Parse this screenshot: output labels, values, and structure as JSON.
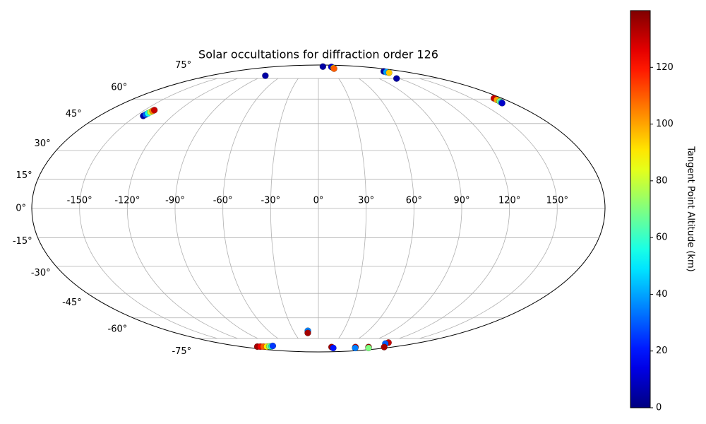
{
  "chart_data": {
    "type": "scatter",
    "projection": "mollweide",
    "colormap": "jet",
    "title": "Solar occultations for diffraction order 126",
    "colorbar_label": "Tangent Point Altitude (km)",
    "xlim": [
      -180,
      180
    ],
    "ylim": [
      -90,
      90
    ],
    "clim": [
      0,
      140
    ],
    "grid": true,
    "xticks": [
      {
        "value": -150,
        "label": "-150°"
      },
      {
        "value": -120,
        "label": "-120°"
      },
      {
        "value": -90,
        "label": "-90°"
      },
      {
        "value": -60,
        "label": "-60°"
      },
      {
        "value": -30,
        "label": "-30°"
      },
      {
        "value": 0,
        "label": "0°"
      },
      {
        "value": 30,
        "label": "30°"
      },
      {
        "value": 60,
        "label": "60°"
      },
      {
        "value": 90,
        "label": "90°"
      },
      {
        "value": 120,
        "label": "120°"
      },
      {
        "value": 150,
        "label": "150°"
      }
    ],
    "yticks": [
      {
        "value": -75,
        "label": "-75°"
      },
      {
        "value": -60,
        "label": "-60°"
      },
      {
        "value": -45,
        "label": "-45°"
      },
      {
        "value": -30,
        "label": "-30°"
      },
      {
        "value": -15,
        "label": "-15°"
      },
      {
        "value": 0,
        "label": "0°"
      },
      {
        "value": 15,
        "label": "15°"
      },
      {
        "value": 30,
        "label": "30°"
      },
      {
        "value": 45,
        "label": "45°"
      },
      {
        "value": 60,
        "label": "60°"
      },
      {
        "value": 75,
        "label": "75°"
      }
    ],
    "cticks": [
      0,
      20,
      40,
      60,
      80,
      100,
      120
    ],
    "lon": [
      -144,
      -143.5,
      -143,
      -142.5,
      -142,
      -141.5,
      -88,
      19,
      50,
      46,
      44,
      139,
      138,
      137,
      116,
      172,
      171.5,
      171,
      170.5,
      170,
      -12.7,
      -13.4,
      -142,
      -135,
      -128,
      -120,
      -112,
      -106,
      -100,
      32,
      40,
      90,
      99,
      122,
      135,
      124,
      125,
      160
    ],
    "lat": [
      49.5,
      50.3,
      51,
      51.8,
      52.5,
      53,
      77.4,
      87,
      86.5,
      85,
      84.4,
      81.4,
      80.8,
      80.1,
      75,
      60.5,
      59.5,
      58.5,
      57.8,
      57.4,
      -69,
      -70.6,
      -82.5,
      -82.5,
      -82.5,
      -82.5,
      -82.3,
      -82.2,
      -81.8,
      -83,
      -84,
      -83,
      -84,
      -83,
      -84,
      -78.6,
      -79.5,
      -83
    ],
    "altitude": [
      5,
      30,
      55,
      80,
      105,
      130,
      5,
      5,
      10,
      90,
      110,
      5,
      40,
      95,
      5,
      130,
      100,
      70,
      40,
      10,
      35,
      135,
      135,
      125,
      110,
      90,
      70,
      55,
      25,
      135,
      20,
      130,
      35,
      135,
      70,
      130,
      30,
      135
    ]
  }
}
